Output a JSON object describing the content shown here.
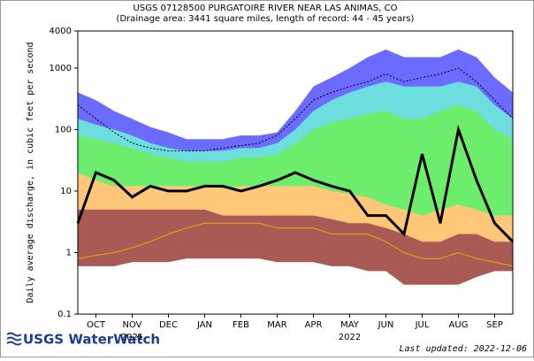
{
  "chart_data": {
    "type": "area",
    "title": "USGS 07128500 PURGATOIRE RIVER NEAR LAS ANIMAS, CO",
    "subtitle": "(Drainage area: 3441 square miles, length of record: 44 - 45 years)",
    "y_label": "Daily average discharge, in cubic feet per second",
    "log_y": true,
    "ylim": [
      0.1,
      4000
    ],
    "yticks": [
      0.1,
      1,
      10,
      100,
      1000,
      4000
    ],
    "xlim": [
      0,
      12
    ],
    "xticks": [
      {
        "value": 0.5,
        "label": "OCT"
      },
      {
        "value": 1.5,
        "label": "NOV"
      },
      {
        "value": 2.5,
        "label": "DEC"
      },
      {
        "value": 3.5,
        "label": "JAN"
      },
      {
        "value": 4.5,
        "label": "FEB"
      },
      {
        "value": 5.5,
        "label": "MAR"
      },
      {
        "value": 6.5,
        "label": "APR"
      },
      {
        "value": 7.5,
        "label": "MAY"
      },
      {
        "value": 8.5,
        "label": "JUN"
      },
      {
        "value": 9.5,
        "label": "JUL"
      },
      {
        "value": 10.5,
        "label": "AUG"
      },
      {
        "value": 11.5,
        "label": "SEP"
      }
    ],
    "x_year_labels": [
      {
        "value": 1.5,
        "label": "2021"
      },
      {
        "value": 7.5,
        "label": "2022"
      }
    ],
    "x": [
      0,
      0.5,
      1,
      1.5,
      2,
      2.5,
      3,
      3.5,
      4,
      4.5,
      5,
      5.5,
      6,
      6.5,
      7,
      7.5,
      8,
      8.5,
      9,
      9.5,
      10,
      10.5,
      11,
      11.5,
      12
    ],
    "series": [
      {
        "kind": "area",
        "color": "#6b6bff",
        "values": [
          400,
          300,
          200,
          150,
          110,
          90,
          70,
          70,
          70,
          80,
          80,
          90,
          200,
          500,
          700,
          1000,
          1500,
          2000,
          1500,
          1500,
          1500,
          2000,
          1500,
          700,
          400
        ]
      },
      {
        "kind": "area",
        "color": "#6ddede",
        "values": [
          150,
          120,
          100,
          80,
          60,
          50,
          45,
          45,
          45,
          50,
          50,
          60,
          100,
          200,
          300,
          400,
          500,
          600,
          500,
          500,
          500,
          600,
          500,
          250,
          150
        ]
      },
      {
        "kind": "area",
        "color": "#6cee6c",
        "values": [
          80,
          70,
          60,
          50,
          40,
          35,
          30,
          30,
          30,
          35,
          35,
          40,
          60,
          100,
          130,
          150,
          180,
          200,
          150,
          150,
          200,
          250,
          200,
          100,
          70
        ]
      },
      {
        "kind": "area",
        "color": "#ffc878",
        "values": [
          20,
          15,
          12,
          12,
          12,
          12,
          12,
          12,
          11,
          12,
          12,
          12,
          12,
          12,
          10,
          9,
          8,
          6,
          5,
          4,
          5,
          6,
          5,
          4,
          4
        ]
      },
      {
        "kind": "area",
        "color": "#aa5a55",
        "values": [
          5,
          5,
          5,
          5,
          5,
          5,
          5,
          5,
          4,
          4,
          4,
          4,
          4,
          4,
          3.5,
          3,
          3,
          2.5,
          2,
          1.5,
          1.5,
          2,
          2,
          1.5,
          1.5
        ]
      },
      {
        "kind": "area",
        "color": "#ffffff",
        "values": [
          0.6,
          0.6,
          0.6,
          0.7,
          0.7,
          0.7,
          0.8,
          0.8,
          0.8,
          0.8,
          0.8,
          0.7,
          0.7,
          0.7,
          0.6,
          0.6,
          0.5,
          0.5,
          0.3,
          0.3,
          0.3,
          0.3,
          0.4,
          0.5,
          0.5
        ]
      },
      {
        "kind": "line",
        "color": "#e0b000",
        "width": 1,
        "values": [
          0.8,
          0.9,
          1,
          1.2,
          1.5,
          2,
          2.5,
          3,
          3,
          3,
          3,
          2.5,
          2.5,
          2.5,
          2,
          2,
          2,
          1.5,
          1,
          0.8,
          0.8,
          1,
          0.8,
          0.7,
          0.6
        ]
      },
      {
        "kind": "line",
        "color": "#000000",
        "width": 1,
        "dash": true,
        "values": [
          250,
          150,
          90,
          60,
          50,
          45,
          45,
          45,
          50,
          55,
          60,
          80,
          150,
          300,
          400,
          500,
          600,
          800,
          600,
          700,
          800,
          1000,
          600,
          300,
          150
        ]
      },
      {
        "kind": "line",
        "color": "#000000",
        "width": 3,
        "values": [
          3,
          20,
          15,
          8,
          12,
          10,
          10,
          12,
          12,
          10,
          12,
          15,
          20,
          15,
          12,
          10,
          4,
          4,
          2,
          40,
          3,
          100,
          15,
          3,
          1.5
        ]
      }
    ],
    "logo_text": "USGS WaterWatch",
    "footer": "Last updated: 2022-12-06"
  }
}
